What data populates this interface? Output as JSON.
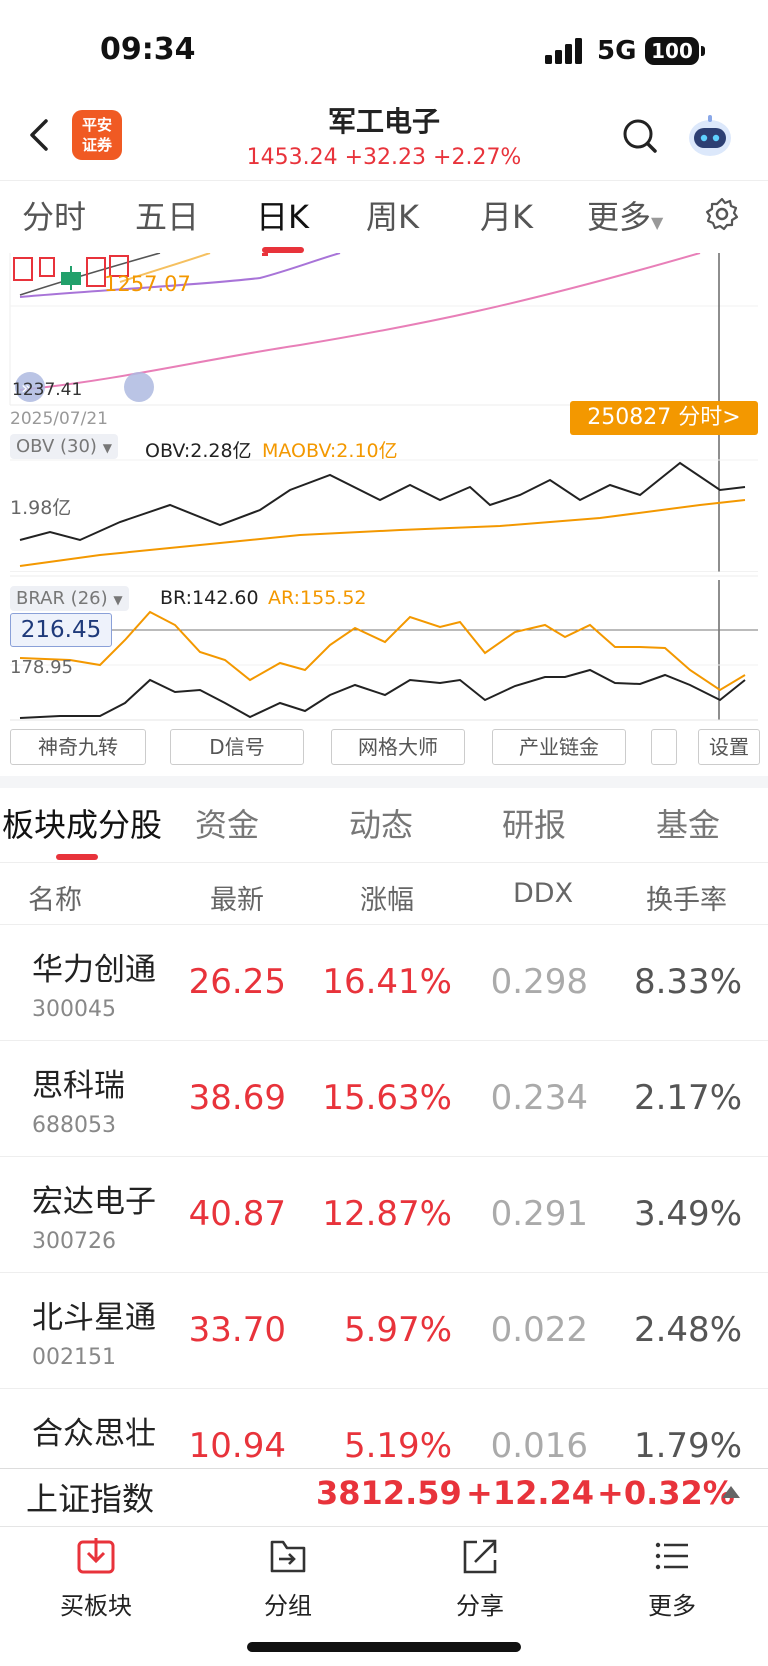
{
  "status_bar": {
    "time": "09:34",
    "network": "5G",
    "battery": "100"
  },
  "header": {
    "logo_text_line1": "平安",
    "logo_text_line2": "证券",
    "title": "军工电子",
    "quote": "1453.24 +32.23 +2.27%"
  },
  "period_tabs": [
    {
      "label": "分时",
      "active": false
    },
    {
      "label": "五日",
      "active": false
    },
    {
      "label": "日K",
      "active": true
    },
    {
      "label": "周K",
      "active": false
    },
    {
      "label": "月K",
      "active": false
    },
    {
      "label": "更多",
      "active": false
    }
  ],
  "kline": {
    "price_label_orange": "1257.07",
    "low_price_label": "1237.41",
    "date_label": "2025/07/21",
    "crosshair_badge": "250827 分时>"
  },
  "obv": {
    "selector": "OBV (30)",
    "obv_value": "OBV:2.28亿",
    "maobv_value": "MAOBV:2.10亿",
    "axis_label": "1.98亿"
  },
  "brar": {
    "selector": "BRAR (26)",
    "br_value": "BR:142.60",
    "ar_value": "AR:155.52",
    "highlight_value": "216.45",
    "axis_label": "178.95"
  },
  "indicator_buttons": [
    "神奇九转",
    "D信号",
    "网格大师",
    "产业链金",
    "",
    "设置"
  ],
  "section_tabs": [
    {
      "label": "板块成分股",
      "active": true
    },
    {
      "label": "资金",
      "active": false
    },
    {
      "label": "动态",
      "active": false
    },
    {
      "label": "研报",
      "active": false
    },
    {
      "label": "基金",
      "active": false
    }
  ],
  "table": {
    "headers": [
      "名称",
      "最新",
      "涨幅",
      "DDX",
      "换手率"
    ],
    "rows": [
      {
        "name": "华力创通",
        "code": "300045",
        "price": "26.25",
        "change": "16.41%",
        "ddx": "0.298",
        "turnover": "8.33%"
      },
      {
        "name": "思科瑞",
        "code": "688053",
        "price": "38.69",
        "change": "15.63%",
        "ddx": "0.234",
        "turnover": "2.17%"
      },
      {
        "name": "宏达电子",
        "code": "300726",
        "price": "40.87",
        "change": "12.87%",
        "ddx": "0.291",
        "turnover": "3.49%"
      },
      {
        "name": "北斗星通",
        "code": "002151",
        "price": "33.70",
        "change": "5.97%",
        "ddx": "0.022",
        "turnover": "2.48%"
      },
      {
        "name": "合众思壮",
        "code": "",
        "price": "10.94",
        "change": "5.19%",
        "ddx": "0.016",
        "turnover": "1.79%"
      }
    ]
  },
  "index_bar": {
    "name": "上证指数",
    "value": "3812.59",
    "change": "+12.24",
    "pct": "+0.32%"
  },
  "toolbar": [
    {
      "label": "买板块",
      "icon": "download-box-icon"
    },
    {
      "label": "分组",
      "icon": "group-icon"
    },
    {
      "label": "分享",
      "icon": "share-icon"
    },
    {
      "label": "更多",
      "icon": "menu-icon"
    }
  ],
  "colors": {
    "up_red": "#e8333b",
    "accent_orange": "#f39800",
    "ma_pink": "#e87fb8",
    "ma_purple": "#a874d8"
  }
}
